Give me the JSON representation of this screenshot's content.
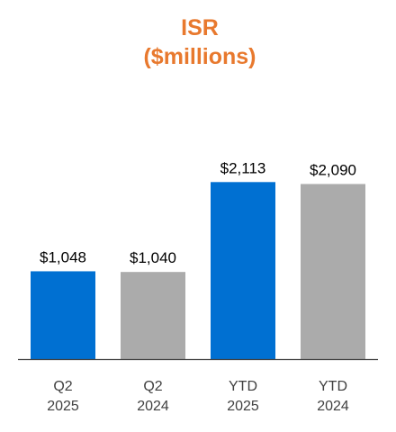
{
  "chart_data": {
    "type": "bar",
    "title": "ISR",
    "subtitle": "($millions)",
    "categories": [
      [
        "Q2",
        "2025"
      ],
      [
        "Q2",
        "2024"
      ],
      [
        "YTD",
        "2025"
      ],
      [
        "YTD",
        "2024"
      ]
    ],
    "values": [
      1048,
      1040,
      2113,
      2090
    ],
    "value_labels": [
      "$1,048",
      "$1,040",
      "$2,113",
      "$2,090"
    ],
    "bar_colors": [
      "#0070D2",
      "#ABABAB",
      "#0070D2",
      "#ABABAB"
    ],
    "title_color": "#E8792E",
    "axis_color": "#404040",
    "xlabel": "",
    "ylabel": "",
    "ylim": [
      0,
      2460
    ],
    "grid": false,
    "legend": "none"
  }
}
